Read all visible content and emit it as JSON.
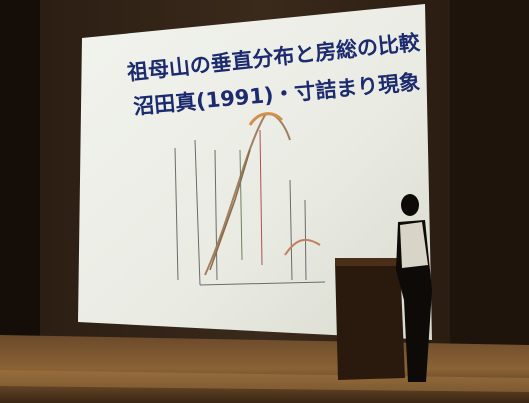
{
  "slide": {
    "title": "祖母山の垂直分布と房総の比較",
    "subtitle": "沼田真(1991)・寸詰まり現象"
  }
}
